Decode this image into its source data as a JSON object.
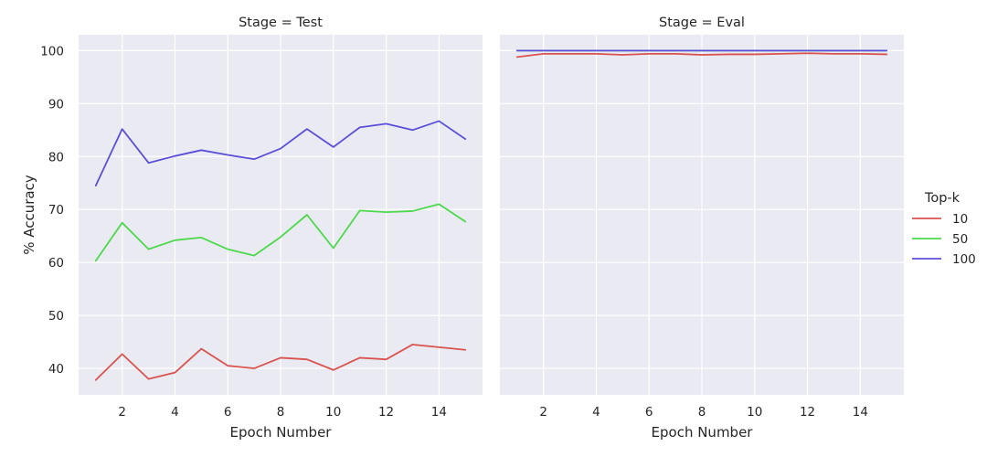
{
  "chart_data": {
    "type": "line",
    "xlabel": "Epoch Number",
    "ylabel": "% Accuracy",
    "xlim": [
      0.35,
      15.65
    ],
    "ylim": [
      35,
      103
    ],
    "x_ticks": [
      2,
      4,
      6,
      8,
      10,
      12,
      14
    ],
    "y_ticks": [
      40,
      50,
      60,
      70,
      80,
      90,
      100
    ],
    "grid": true,
    "legend": {
      "title": "Top-k",
      "placement": "right",
      "entries": [
        {
          "label": "10",
          "color": "#d9534f"
        },
        {
          "label": "50",
          "color": "#4cd94c"
        },
        {
          "label": "100",
          "color": "#5b4fd9"
        }
      ]
    },
    "x": [
      1,
      2,
      3,
      4,
      5,
      6,
      7,
      8,
      9,
      10,
      11,
      12,
      13,
      14,
      15
    ],
    "panels": [
      {
        "title": "Stage = Test",
        "series": [
          {
            "name": "10",
            "color": "#d9534f",
            "values": [
              37.8,
              42.7,
              38.0,
              39.2,
              43.7,
              40.5,
              40.0,
              42.0,
              41.7,
              39.7,
              42.0,
              41.7,
              44.5,
              44.0,
              43.5
            ]
          },
          {
            "name": "50",
            "color": "#4cd94c",
            "values": [
              60.3,
              67.5,
              62.5,
              64.2,
              64.7,
              62.5,
              61.3,
              64.8,
              69.0,
              62.7,
              69.8,
              69.5,
              69.7,
              71.0,
              67.7
            ]
          },
          {
            "name": "100",
            "color": "#5b4fd9",
            "values": [
              74.5,
              85.2,
              78.8,
              80.1,
              81.2,
              80.3,
              79.5,
              81.5,
              85.2,
              81.8,
              85.5,
              86.2,
              85.0,
              86.7,
              83.3
            ]
          }
        ]
      },
      {
        "title": "Stage = Eval",
        "series": [
          {
            "name": "10",
            "color": "#d9534f",
            "values": [
              98.8,
              99.4,
              99.4,
              99.4,
              99.2,
              99.4,
              99.4,
              99.2,
              99.3,
              99.3,
              99.4,
              99.5,
              99.4,
              99.4,
              99.3
            ]
          },
          {
            "name": "50",
            "color": "#4cd94c",
            "values": [
              100.0,
              100.0,
              100.0,
              100.0,
              100.0,
              100.0,
              100.0,
              100.0,
              100.0,
              100.0,
              100.0,
              100.0,
              100.0,
              100.0,
              100.0
            ]
          },
          {
            "name": "100",
            "color": "#5b4fd9",
            "values": [
              100.0,
              100.0,
              100.0,
              100.0,
              100.0,
              100.0,
              100.0,
              100.0,
              100.0,
              100.0,
              100.0,
              100.0,
              100.0,
              100.0,
              100.0
            ]
          }
        ]
      }
    ]
  }
}
